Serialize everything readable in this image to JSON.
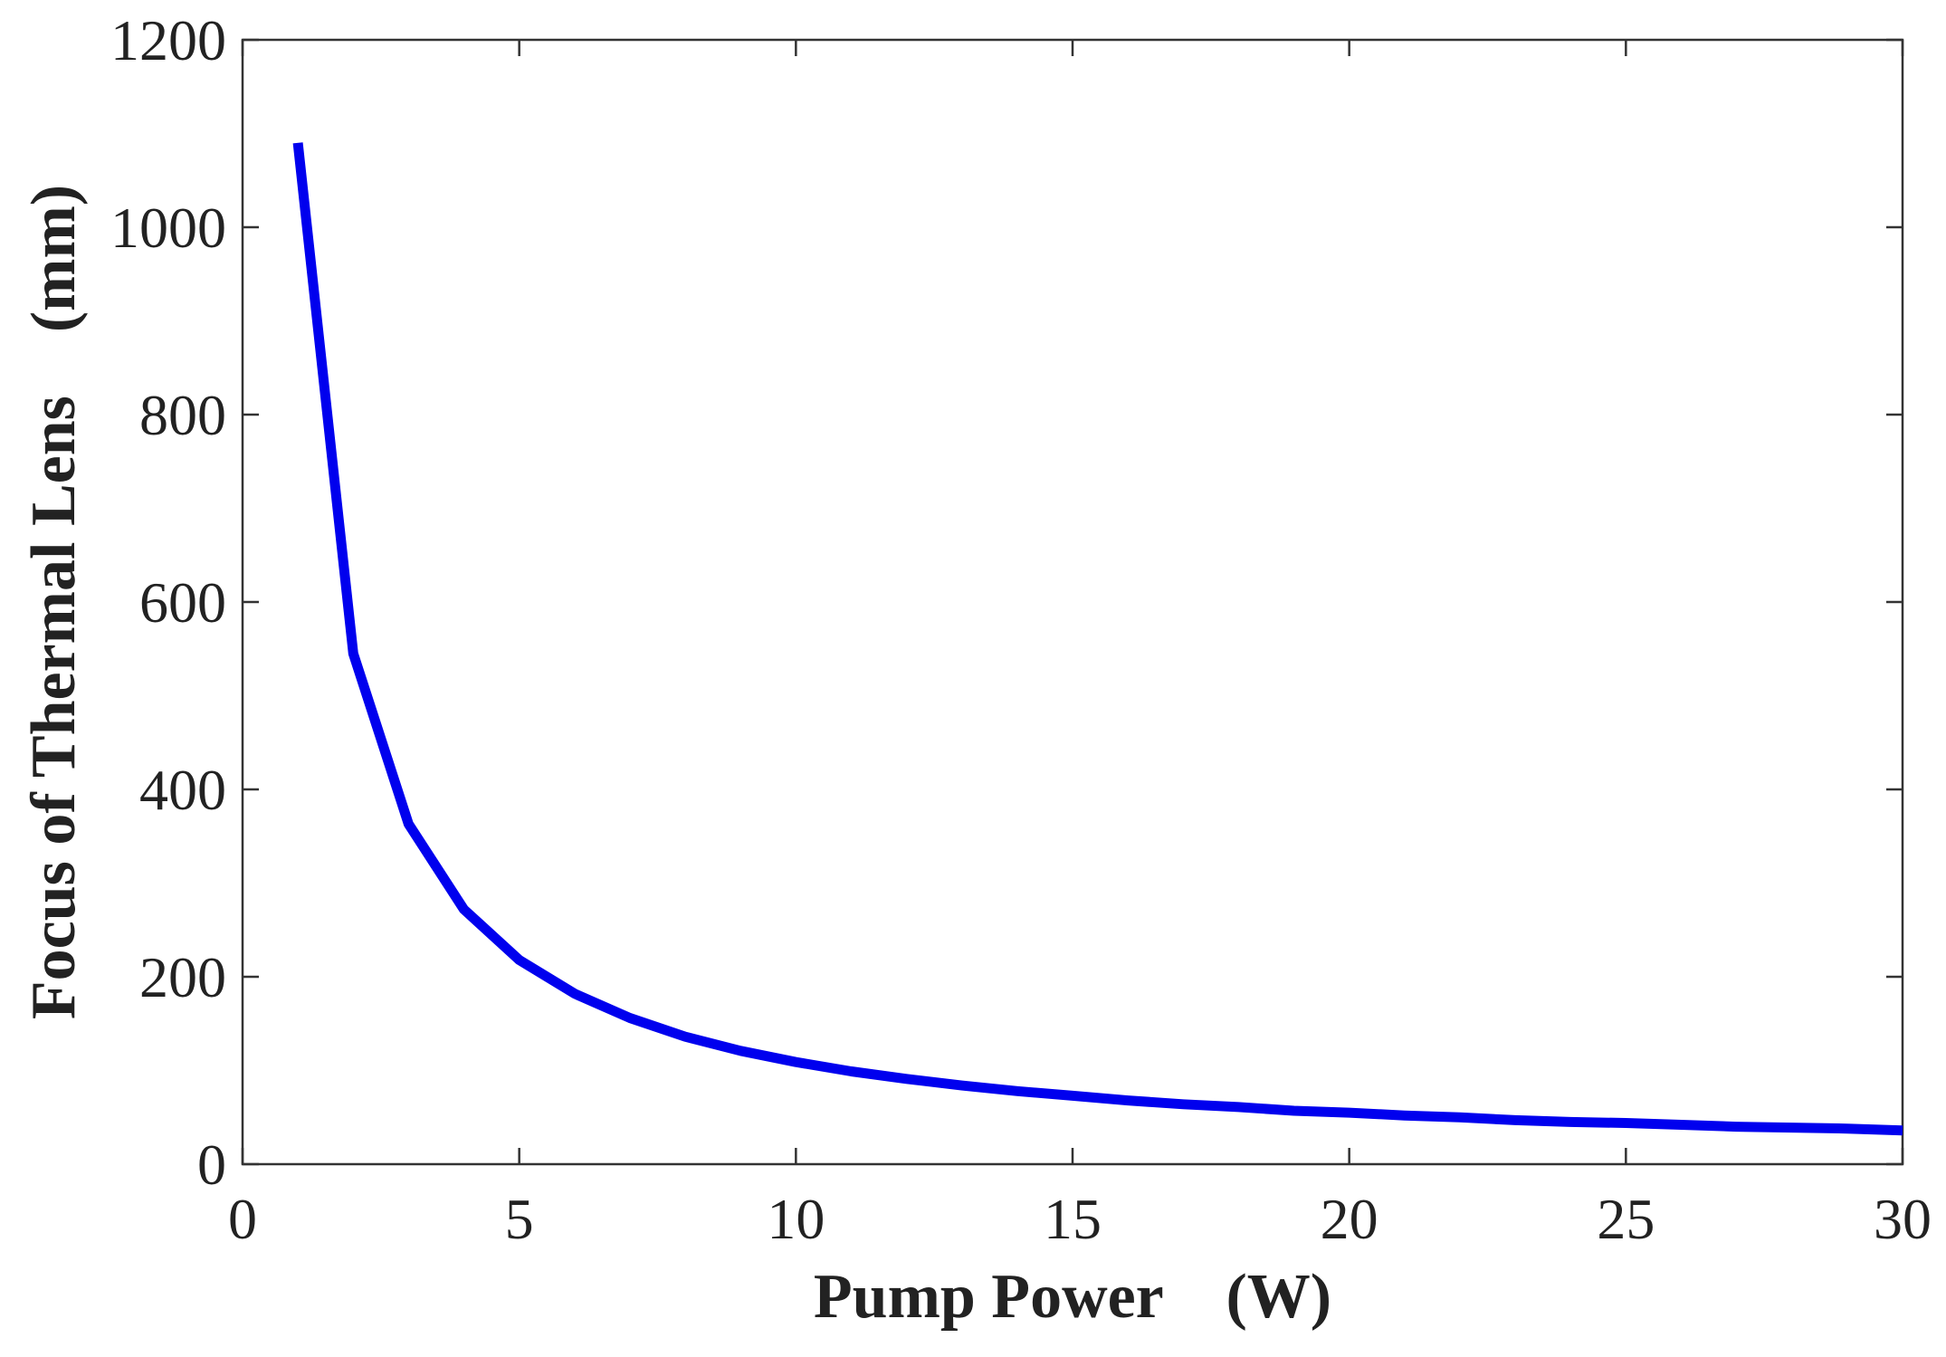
{
  "chart_data": {
    "type": "line",
    "title": "",
    "xlabel": "Pump Power　(W)",
    "ylabel": "Focus of Thermal Lens　(mm)",
    "xlim": [
      0,
      30
    ],
    "ylim": [
      0,
      1200
    ],
    "xticks": [
      0,
      5,
      10,
      15,
      20,
      25,
      30
    ],
    "yticks": [
      0,
      200,
      400,
      600,
      800,
      1000,
      1200
    ],
    "grid": false,
    "legend": "none",
    "series": [
      {
        "color": "#0000ee",
        "x": [
          1,
          2,
          3,
          4,
          5,
          6,
          7,
          8,
          9,
          10,
          11,
          12,
          13,
          14,
          15,
          16,
          17,
          18,
          19,
          20,
          21,
          22,
          23,
          24,
          25,
          26,
          27,
          28,
          29,
          30
        ],
        "y": [
          1090,
          545,
          363,
          272,
          218,
          182,
          156,
          136,
          121,
          109,
          99,
          91,
          84,
          78,
          73,
          68,
          64,
          61,
          57,
          55,
          52,
          50,
          47,
          45,
          44,
          42,
          40,
          39,
          38,
          36
        ]
      }
    ]
  }
}
